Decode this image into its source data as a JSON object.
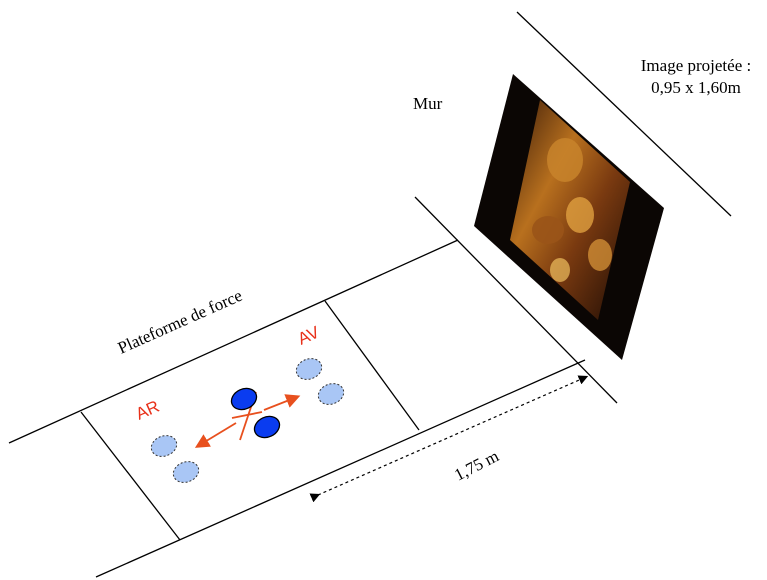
{
  "labels": {
    "platform": "Plateforme de force",
    "wall": "Mur",
    "image_title_line1": "Image projetée :",
    "image_title_line2": "0,95 x 1,60m",
    "distance": "1,75 m",
    "front": "AV",
    "rear": "AR"
  },
  "colors": {
    "line": "#000000",
    "label_red": "#e8311a",
    "arrow_orange": "#e8501e",
    "foot_dark": "#0a3cf0",
    "foot_light": "#a9c6f5"
  }
}
